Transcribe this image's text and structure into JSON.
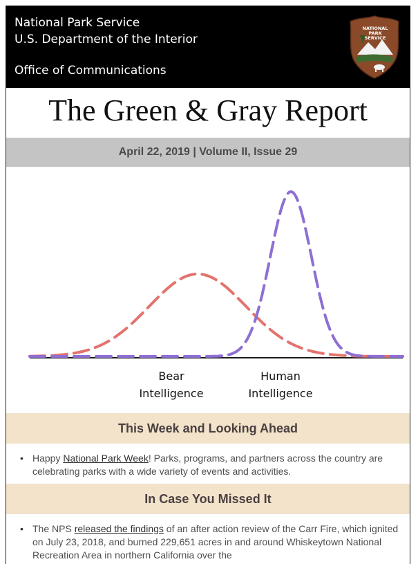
{
  "header": {
    "agency_line1": "National Park Service",
    "agency_line2": "U.S. Department of the Interior",
    "office": "Office of Communications",
    "logo_text": "NATIONAL PARK SERVICE"
  },
  "newsletter": {
    "title": "The Green & Gray Report",
    "date_line": "April 22, 2019 | Volume II, Issue 29"
  },
  "chart_data": {
    "type": "line",
    "title": "",
    "xlabel": "",
    "ylabel": "",
    "series": [
      {
        "name": "Bear Intelligence",
        "color": "#e3736e",
        "mean": 0.45,
        "sd": 0.13,
        "peak": 0.5
      },
      {
        "name": "Human Intelligence",
        "color": "#8e6fd3",
        "mean": 0.7,
        "sd": 0.055,
        "peak": 1.0
      }
    ],
    "xlim": [
      0,
      1
    ],
    "ylim": [
      0,
      1.05
    ],
    "grid": false,
    "legend": "none"
  },
  "chart_labels": {
    "bear_line1": "Bear",
    "bear_line2": "Intelligence",
    "human_line1": "Human",
    "human_line2": "Intelligence"
  },
  "sections": [
    {
      "heading": "This Week and Looking Ahead",
      "item_pre": "Happy ",
      "item_link": "National Park Week",
      "item_post": "! Parks, programs, and partners across the country are celebrating parks with a wide variety of events and activities."
    },
    {
      "heading": "In Case You Missed It",
      "item_pre": "The NPS ",
      "item_link": "released the findings",
      "item_post": " of an after action review of the Carr Fire, which ignited on July 23, 2018, and burned 229,651 acres in and around Whiskeytown National Recreation Area in northern California over the"
    }
  ],
  "colors": {
    "header_bg": "#000000",
    "date_band": "#c4c4c4",
    "section_band": "#f3e3cb",
    "bear_curve": "#e3736e",
    "human_curve": "#8e6fd3"
  }
}
